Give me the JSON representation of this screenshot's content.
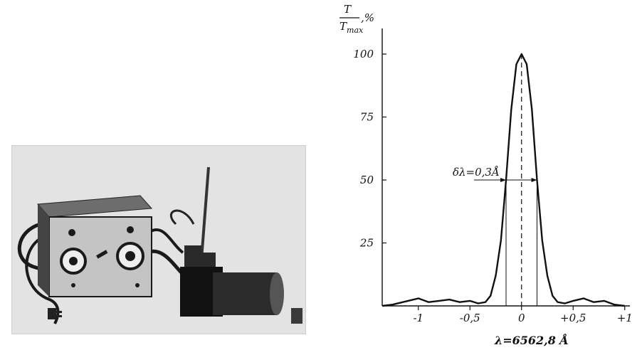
{
  "photo": {
    "description_alt": "apparatus photo"
  },
  "chart_data": {
    "type": "line",
    "ylabel_num": "T",
    "ylabel_den": "T",
    "ylabel_den_sub": "max",
    "ylabel_suffix": ",%",
    "xlabel": "λ=6562,8 Å",
    "xlim": [
      -1.35,
      1.05
    ],
    "ylim": [
      0,
      100
    ],
    "x_ticks": [
      {
        "value": -1,
        "label": "-1"
      },
      {
        "value": -0.5,
        "label": "-0,5"
      },
      {
        "value": 0,
        "label": "0"
      },
      {
        "value": 0.5,
        "label": "+0,5"
      },
      {
        "value": 1,
        "label": "+1"
      }
    ],
    "y_ticks": [
      {
        "value": 25,
        "label": "25"
      },
      {
        "value": 50,
        "label": "50"
      },
      {
        "value": 75,
        "label": "75"
      },
      {
        "value": 100,
        "label": "100"
      }
    ],
    "annotation": "δλ=0,3Å",
    "fwhm": [
      -0.15,
      0.15
    ],
    "series": [
      {
        "x": [
          -1.35,
          -1.25,
          -1.1,
          -1.0,
          -0.9,
          -0.8,
          -0.7,
          -0.6,
          -0.5,
          -0.42,
          -0.35,
          -0.3,
          -0.25,
          -0.2,
          -0.15,
          -0.1,
          -0.05,
          0,
          0.05,
          0.1,
          0.15,
          0.2,
          0.25,
          0.3,
          0.35,
          0.42,
          0.5,
          0.6,
          0.7,
          0.8,
          0.9,
          1.0
        ],
        "y": [
          0,
          0.5,
          2,
          3,
          1.5,
          2,
          2.5,
          1.5,
          2,
          1,
          1.5,
          4,
          12,
          26,
          50,
          78,
          96,
          100,
          96,
          78,
          50,
          26,
          12,
          4,
          1.5,
          1,
          2,
          3,
          1.5,
          2,
          0.5,
          0
        ]
      }
    ]
  }
}
